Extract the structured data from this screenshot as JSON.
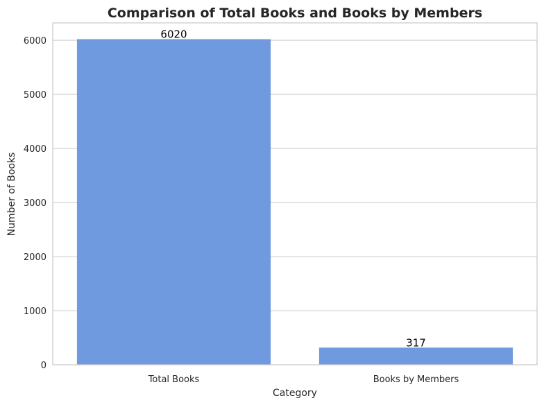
{
  "chart_data": {
    "type": "bar",
    "title": "Comparison of Total Books and Books by Members",
    "xlabel": "Category",
    "ylabel": "Number of Books",
    "categories": [
      "Total Books",
      "Books by Members"
    ],
    "values": [
      6020,
      317
    ],
    "data_labels": [
      "6020",
      "317"
    ],
    "yticks": [
      0,
      1000,
      2000,
      3000,
      4000,
      5000,
      6000
    ],
    "ytick_labels": [
      "0",
      "1000",
      "2000",
      "3000",
      "4000",
      "5000",
      "6000"
    ],
    "ylim": [
      0,
      6321
    ],
    "grid": "horizontal",
    "bar_color": "#6f9adf"
  }
}
